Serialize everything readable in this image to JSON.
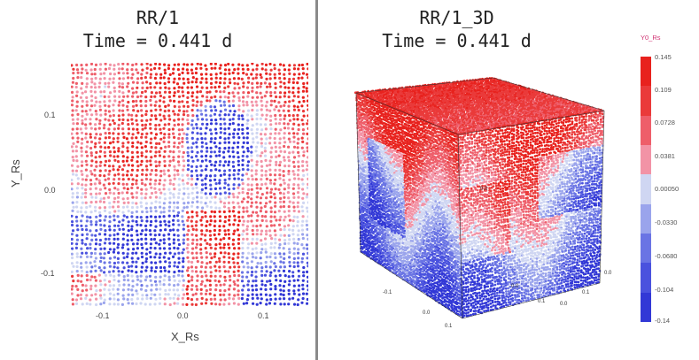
{
  "left": {
    "title": "RR/1",
    "time": "Time = 0.441 d",
    "xlabel": "X_Rs",
    "ylabel": "Y_Rs",
    "xticks": [
      "-0.1",
      "0.0",
      "0.1"
    ],
    "yticks": [
      "0.1",
      "0.0",
      "-0.1"
    ]
  },
  "right": {
    "title": "RR/1_3D",
    "time": "Time = 0.441 d",
    "cube_labels": [
      "0.0",
      "0.0",
      "0.1",
      "-0.1",
      "0.0",
      "0.1",
      "0.0",
      "0.1",
      "0.0"
    ]
  },
  "colorbar": {
    "title": "Y0_Rs",
    "labels": [
      "0.145",
      "0.109",
      "0.0728",
      "0.0381",
      "0.00050",
      "-0.0330",
      "-0.0680",
      "-0.104",
      "-0.14"
    ],
    "colors": [
      "#e8221e",
      "#ea3a3a",
      "#ee5e6a",
      "#f293a6",
      "#cfd6f2",
      "#9aa4ec",
      "#6a74e4",
      "#4a52de",
      "#3238d6"
    ]
  }
}
